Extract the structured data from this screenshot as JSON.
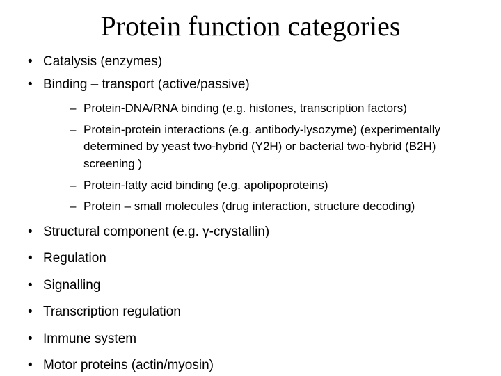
{
  "title": "Protein function categories",
  "topBullets": [
    "Catalysis (enzymes)",
    "Binding – transport (active/passive)"
  ],
  "subBullets": [
    "Protein-DNA/RNA binding (e.g. histones, transcription factors)",
    "Protein-protein interactions (e.g. antibody-lysozyme) (experimentally determined by yeast two-hybrid (Y2H) or bacterial two-hybrid (B2H) screening )",
    "Protein-fatty acid binding (e.g. apolipoproteins)",
    "Protein – small molecules (drug interaction, structure decoding)"
  ],
  "bottomBullets": [
    "Structural component (e.g. γ-crystallin)",
    "Regulation",
    "Signalling",
    "Transcription regulation",
    "Immune system",
    "Motor proteins (actin/myosin)"
  ],
  "styling": {
    "title_fontfamily": "Times New Roman",
    "title_fontsize": 40,
    "title_color": "#000000",
    "body_fontfamily": "Arial",
    "bullet1_fontsize": 19,
    "bullet2_fontsize": 17,
    "background_color": "#ffffff",
    "slide_width": 720,
    "slide_height": 540
  }
}
